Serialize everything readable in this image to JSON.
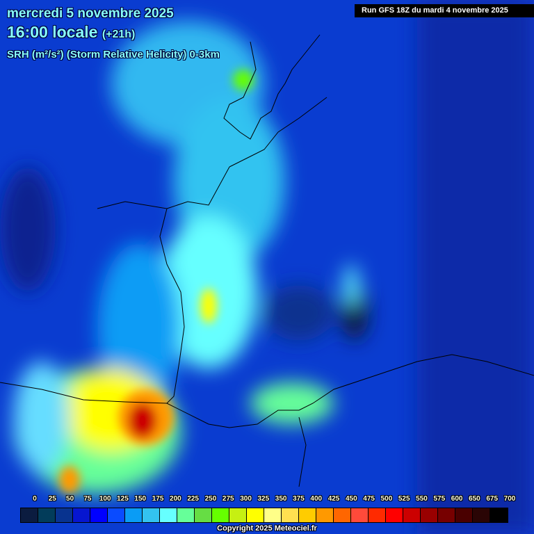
{
  "header": {
    "date": "mercredi 5 novembre 2025",
    "time": "16:00 locale",
    "lead": "(+21h)",
    "parameter": "SRH (m²/s²) (Storm Relative Helicity) 0-3km",
    "run": "Run GFS 18Z du mardi 4 novembre 2025"
  },
  "legend": {
    "labels": [
      "0",
      "25",
      "50",
      "75",
      "100",
      "125",
      "150",
      "175",
      "200",
      "225",
      "250",
      "275",
      "300",
      "325",
      "350",
      "375",
      "400",
      "425",
      "450",
      "475",
      "500",
      "525",
      "550",
      "575",
      "600",
      "650",
      "675",
      "700"
    ],
    "colors": [
      "#0b1c40",
      "#023c5a",
      "#08338f",
      "#0616d0",
      "#0000ff",
      "#0a4bff",
      "#0a9cf5",
      "#33c3f0",
      "#66ffff",
      "#66ff99",
      "#66dd44",
      "#66ff00",
      "#c6f012",
      "#ffff00",
      "#ffff88",
      "#ffe050",
      "#ffcc00",
      "#ff9900",
      "#ff6600",
      "#ff4a3a",
      "#ff2a00",
      "#ff0000",
      "#cc0000",
      "#990000",
      "#770000",
      "#4a0000",
      "#2a0505",
      "#000000"
    ]
  },
  "copyright": "Copyright 2025 Meteociel.fr"
}
